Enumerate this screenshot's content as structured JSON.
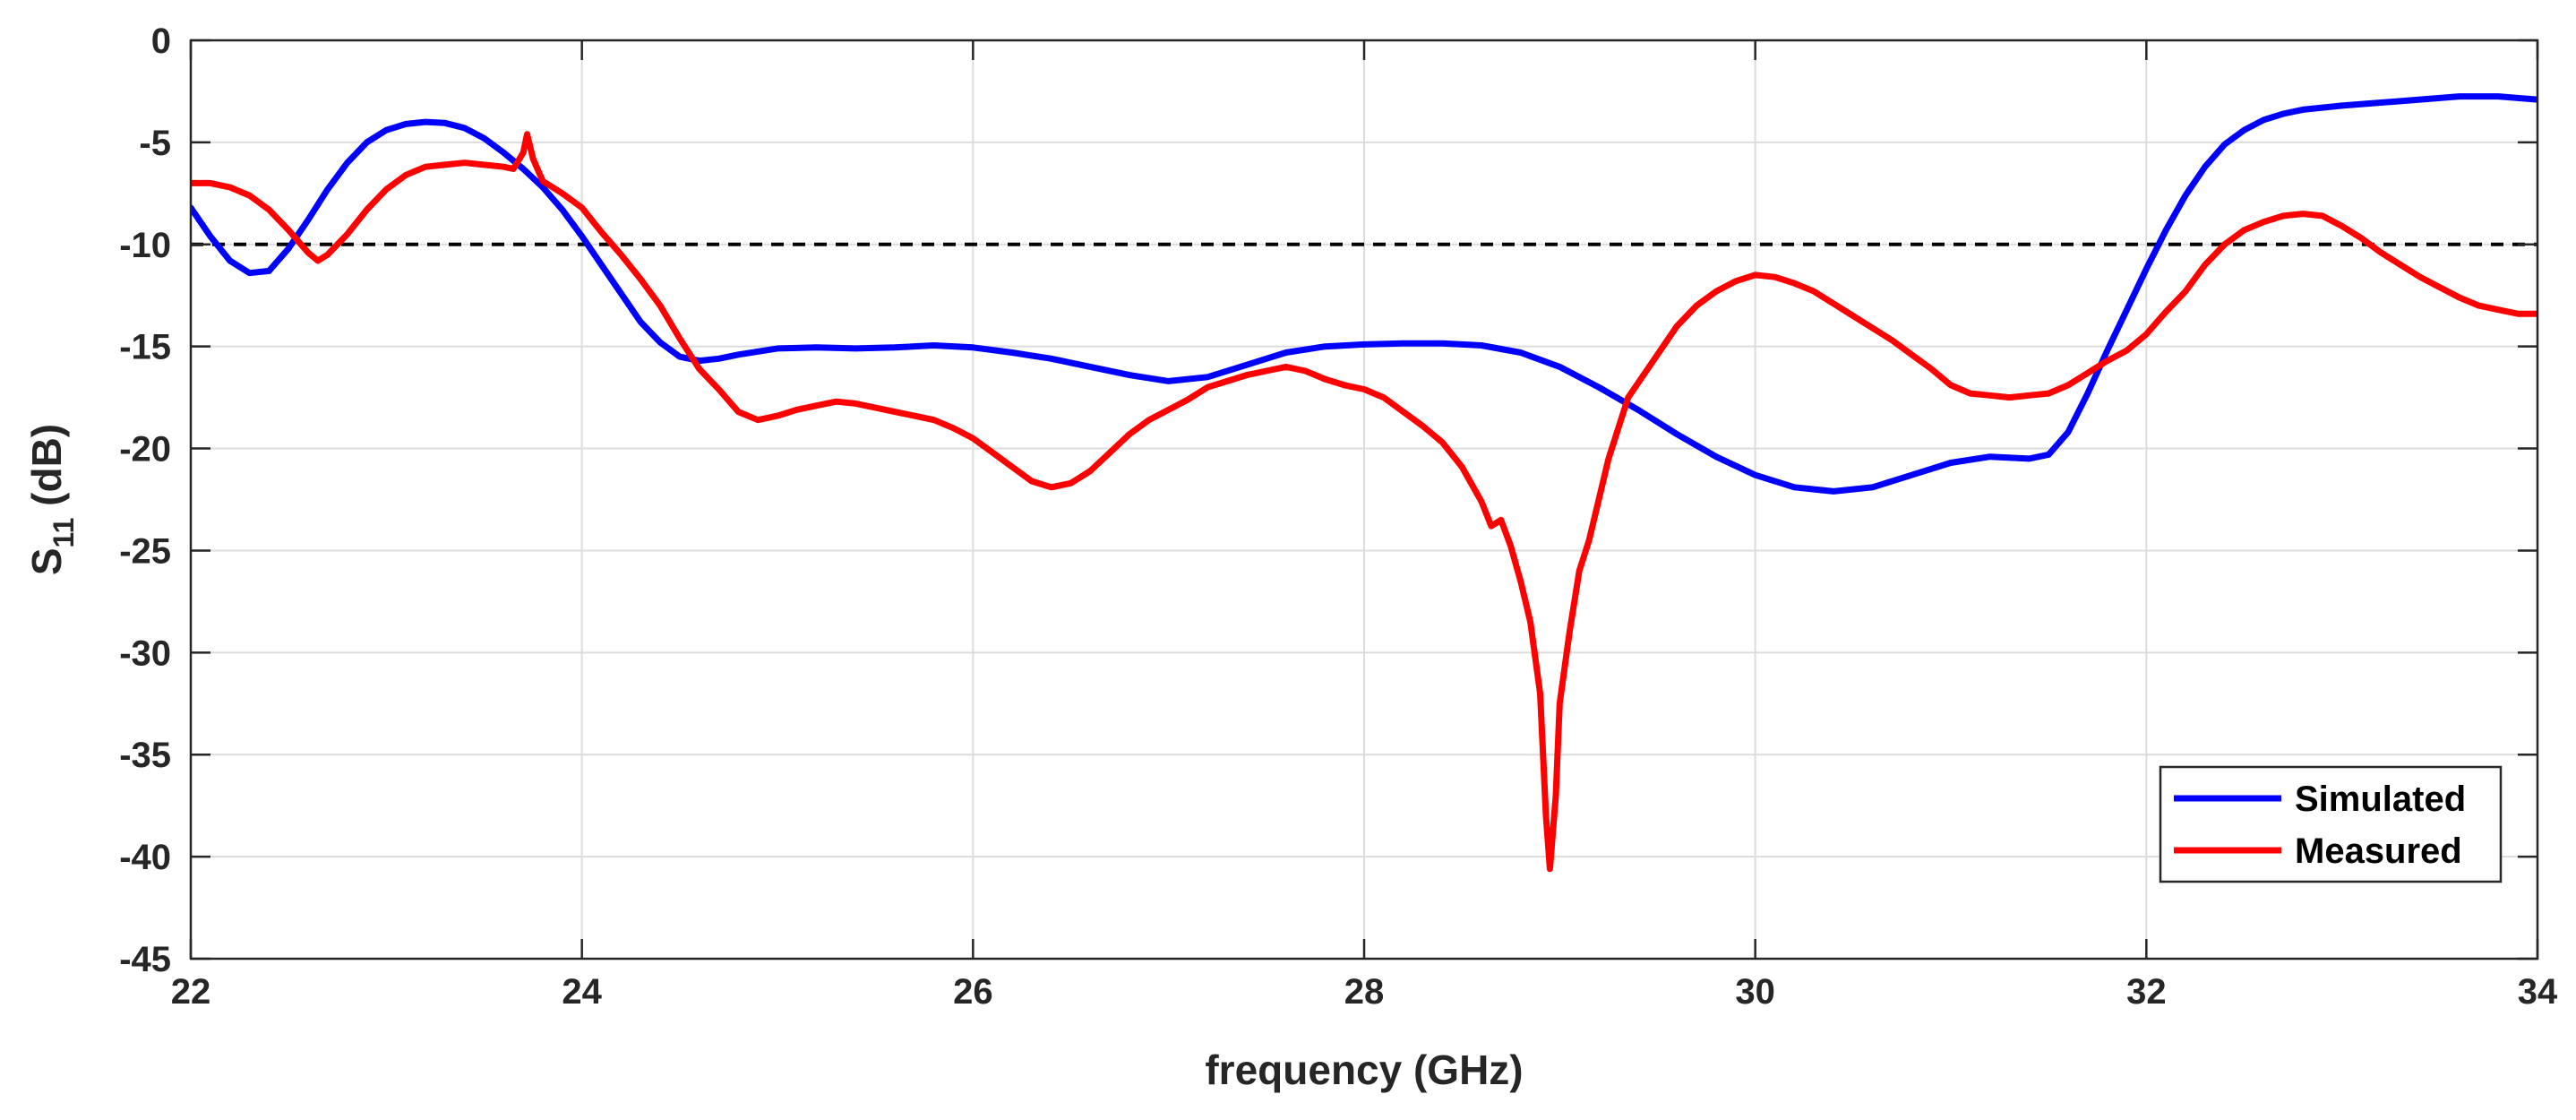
{
  "chart_data": {
    "type": "line",
    "title": "",
    "xlabel": "frequency (GHz)",
    "ylabel": {
      "prefix": "S",
      "subscript": "11",
      "suffix": " (dB)"
    },
    "xlim": [
      22,
      34
    ],
    "ylim": [
      -45,
      0
    ],
    "xticks": [
      22,
      24,
      26,
      28,
      30,
      32,
      34
    ],
    "yticks": [
      0,
      -5,
      -10,
      -15,
      -20,
      -25,
      -30,
      -35,
      -40,
      -45
    ],
    "grid": true,
    "legend_position": "bottom-right",
    "reference_line": {
      "y": -10,
      "style": "dashed",
      "color": "#000000"
    },
    "series": [
      {
        "name": "Simulated",
        "color": "#0000FF",
        "points": [
          [
            22.0,
            -8.2
          ],
          [
            22.1,
            -9.6
          ],
          [
            22.2,
            -10.8
          ],
          [
            22.3,
            -11.4
          ],
          [
            22.4,
            -11.3
          ],
          [
            22.5,
            -10.2
          ],
          [
            22.6,
            -8.8
          ],
          [
            22.7,
            -7.3
          ],
          [
            22.8,
            -6.0
          ],
          [
            22.9,
            -5.0
          ],
          [
            23.0,
            -4.4
          ],
          [
            23.1,
            -4.1
          ],
          [
            23.2,
            -4.0
          ],
          [
            23.3,
            -4.05
          ],
          [
            23.4,
            -4.3
          ],
          [
            23.5,
            -4.8
          ],
          [
            23.6,
            -5.5
          ],
          [
            23.7,
            -6.3
          ],
          [
            23.8,
            -7.2
          ],
          [
            23.9,
            -8.3
          ],
          [
            24.0,
            -9.6
          ],
          [
            24.1,
            -11.0
          ],
          [
            24.2,
            -12.4
          ],
          [
            24.3,
            -13.8
          ],
          [
            24.4,
            -14.8
          ],
          [
            24.5,
            -15.5
          ],
          [
            24.6,
            -15.7
          ],
          [
            24.7,
            -15.6
          ],
          [
            24.8,
            -15.4
          ],
          [
            25.0,
            -15.1
          ],
          [
            25.2,
            -15.05
          ],
          [
            25.4,
            -15.1
          ],
          [
            25.6,
            -15.05
          ],
          [
            25.8,
            -14.95
          ],
          [
            26.0,
            -15.05
          ],
          [
            26.2,
            -15.3
          ],
          [
            26.4,
            -15.6
          ],
          [
            26.6,
            -16.0
          ],
          [
            26.8,
            -16.4
          ],
          [
            27.0,
            -16.7
          ],
          [
            27.2,
            -16.5
          ],
          [
            27.4,
            -15.9
          ],
          [
            27.6,
            -15.3
          ],
          [
            27.8,
            -15.0
          ],
          [
            28.0,
            -14.9
          ],
          [
            28.2,
            -14.85
          ],
          [
            28.4,
            -14.85
          ],
          [
            28.6,
            -14.95
          ],
          [
            28.8,
            -15.3
          ],
          [
            29.0,
            -16.0
          ],
          [
            29.2,
            -17.0
          ],
          [
            29.4,
            -18.1
          ],
          [
            29.6,
            -19.3
          ],
          [
            29.8,
            -20.4
          ],
          [
            30.0,
            -21.3
          ],
          [
            30.2,
            -21.9
          ],
          [
            30.4,
            -22.1
          ],
          [
            30.6,
            -21.9
          ],
          [
            30.8,
            -21.3
          ],
          [
            31.0,
            -20.7
          ],
          [
            31.2,
            -20.4
          ],
          [
            31.4,
            -20.5
          ],
          [
            31.5,
            -20.3
          ],
          [
            31.6,
            -19.2
          ],
          [
            31.7,
            -17.3
          ],
          [
            31.8,
            -15.2
          ],
          [
            31.9,
            -13.2
          ],
          [
            32.0,
            -11.2
          ],
          [
            32.1,
            -9.3
          ],
          [
            32.2,
            -7.6
          ],
          [
            32.3,
            -6.2
          ],
          [
            32.4,
            -5.1
          ],
          [
            32.5,
            -4.4
          ],
          [
            32.6,
            -3.9
          ],
          [
            32.7,
            -3.6
          ],
          [
            32.8,
            -3.4
          ],
          [
            33.0,
            -3.2
          ],
          [
            33.2,
            -3.05
          ],
          [
            33.4,
            -2.9
          ],
          [
            33.6,
            -2.75
          ],
          [
            33.8,
            -2.75
          ],
          [
            34.0,
            -2.9
          ]
        ]
      },
      {
        "name": "Measured",
        "color": "#FF0000",
        "points": [
          [
            22.0,
            -7.0
          ],
          [
            22.1,
            -7.0
          ],
          [
            22.2,
            -7.2
          ],
          [
            22.3,
            -7.6
          ],
          [
            22.4,
            -8.3
          ],
          [
            22.5,
            -9.3
          ],
          [
            22.6,
            -10.4
          ],
          [
            22.65,
            -10.8
          ],
          [
            22.7,
            -10.5
          ],
          [
            22.8,
            -9.5
          ],
          [
            22.9,
            -8.3
          ],
          [
            23.0,
            -7.3
          ],
          [
            23.1,
            -6.6
          ],
          [
            23.2,
            -6.2
          ],
          [
            23.3,
            -6.1
          ],
          [
            23.4,
            -6.0
          ],
          [
            23.5,
            -6.1
          ],
          [
            23.6,
            -6.2
          ],
          [
            23.65,
            -6.3
          ],
          [
            23.7,
            -5.5
          ],
          [
            23.72,
            -4.6
          ],
          [
            23.75,
            -5.8
          ],
          [
            23.8,
            -6.9
          ],
          [
            23.9,
            -7.5
          ],
          [
            24.0,
            -8.2
          ],
          [
            24.1,
            -9.4
          ],
          [
            24.2,
            -10.5
          ],
          [
            24.3,
            -11.7
          ],
          [
            24.4,
            -13.0
          ],
          [
            24.5,
            -14.6
          ],
          [
            24.6,
            -16.1
          ],
          [
            24.7,
            -17.1
          ],
          [
            24.8,
            -18.2
          ],
          [
            24.9,
            -18.6
          ],
          [
            25.0,
            -18.4
          ],
          [
            25.1,
            -18.1
          ],
          [
            25.2,
            -17.9
          ],
          [
            25.3,
            -17.7
          ],
          [
            25.4,
            -17.8
          ],
          [
            25.5,
            -18.0
          ],
          [
            25.6,
            -18.2
          ],
          [
            25.7,
            -18.4
          ],
          [
            25.8,
            -18.6
          ],
          [
            25.9,
            -19.0
          ],
          [
            26.0,
            -19.5
          ],
          [
            26.1,
            -20.2
          ],
          [
            26.2,
            -20.9
          ],
          [
            26.3,
            -21.6
          ],
          [
            26.4,
            -21.9
          ],
          [
            26.5,
            -21.7
          ],
          [
            26.6,
            -21.1
          ],
          [
            26.7,
            -20.2
          ],
          [
            26.8,
            -19.3
          ],
          [
            26.9,
            -18.6
          ],
          [
            27.0,
            -18.1
          ],
          [
            27.1,
            -17.6
          ],
          [
            27.2,
            -17.0
          ],
          [
            27.3,
            -16.7
          ],
          [
            27.4,
            -16.4
          ],
          [
            27.5,
            -16.2
          ],
          [
            27.6,
            -16.0
          ],
          [
            27.7,
            -16.2
          ],
          [
            27.8,
            -16.6
          ],
          [
            27.9,
            -16.9
          ],
          [
            28.0,
            -17.1
          ],
          [
            28.1,
            -17.5
          ],
          [
            28.2,
            -18.2
          ],
          [
            28.3,
            -18.9
          ],
          [
            28.4,
            -19.7
          ],
          [
            28.5,
            -20.9
          ],
          [
            28.6,
            -22.6
          ],
          [
            28.65,
            -23.8
          ],
          [
            28.7,
            -23.5
          ],
          [
            28.75,
            -24.8
          ],
          [
            28.8,
            -26.5
          ],
          [
            28.85,
            -28.5
          ],
          [
            28.9,
            -32.0
          ],
          [
            28.93,
            -38.0
          ],
          [
            28.95,
            -40.6
          ],
          [
            28.98,
            -37.0
          ],
          [
            29.0,
            -32.5
          ],
          [
            29.05,
            -29.0
          ],
          [
            29.1,
            -26.0
          ],
          [
            29.15,
            -24.5
          ],
          [
            29.2,
            -22.5
          ],
          [
            29.25,
            -20.5
          ],
          [
            29.3,
            -19.0
          ],
          [
            29.35,
            -17.5
          ],
          [
            29.4,
            -16.8
          ],
          [
            29.5,
            -15.4
          ],
          [
            29.6,
            -14.0
          ],
          [
            29.7,
            -13.0
          ],
          [
            29.8,
            -12.3
          ],
          [
            29.9,
            -11.8
          ],
          [
            30.0,
            -11.5
          ],
          [
            30.1,
            -11.6
          ],
          [
            30.2,
            -11.9
          ],
          [
            30.3,
            -12.3
          ],
          [
            30.4,
            -12.9
          ],
          [
            30.5,
            -13.5
          ],
          [
            30.6,
            -14.1
          ],
          [
            30.7,
            -14.7
          ],
          [
            30.8,
            -15.4
          ],
          [
            30.9,
            -16.1
          ],
          [
            31.0,
            -16.9
          ],
          [
            31.1,
            -17.3
          ],
          [
            31.2,
            -17.4
          ],
          [
            31.3,
            -17.5
          ],
          [
            31.4,
            -17.4
          ],
          [
            31.5,
            -17.3
          ],
          [
            31.6,
            -16.9
          ],
          [
            31.7,
            -16.3
          ],
          [
            31.8,
            -15.7
          ],
          [
            31.9,
            -15.2
          ],
          [
            32.0,
            -14.4
          ],
          [
            32.1,
            -13.3
          ],
          [
            32.2,
            -12.3
          ],
          [
            32.3,
            -11.0
          ],
          [
            32.4,
            -10.0
          ],
          [
            32.5,
            -9.3
          ],
          [
            32.6,
            -8.9
          ],
          [
            32.7,
            -8.6
          ],
          [
            32.8,
            -8.5
          ],
          [
            32.9,
            -8.6
          ],
          [
            33.0,
            -9.1
          ],
          [
            33.1,
            -9.7
          ],
          [
            33.2,
            -10.4
          ],
          [
            33.3,
            -11.0
          ],
          [
            33.4,
            -11.6
          ],
          [
            33.5,
            -12.1
          ],
          [
            33.6,
            -12.6
          ],
          [
            33.7,
            -13.0
          ],
          [
            33.8,
            -13.2
          ],
          [
            33.9,
            -13.4
          ],
          [
            34.0,
            -13.4
          ]
        ]
      }
    ]
  }
}
